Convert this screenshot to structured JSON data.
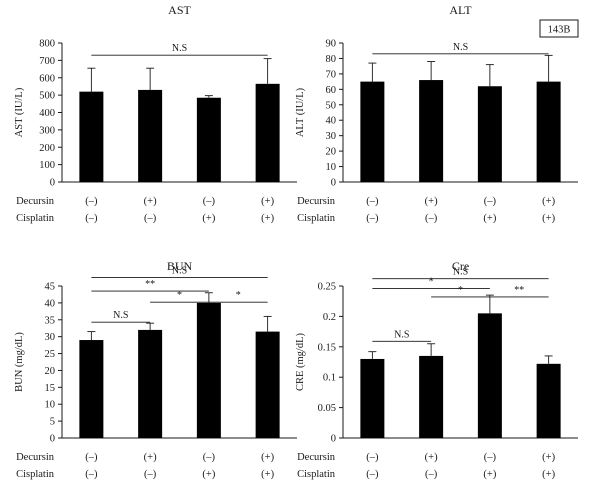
{
  "badge": "143B",
  "row_labels": [
    "Decursin",
    "Cisplatin"
  ],
  "chart_data": [
    {
      "type": "bar",
      "title": "AST",
      "ylabel": "AST (IU/L)",
      "ylim": [
        0,
        800
      ],
      "yticks": [
        0,
        100,
        200,
        300,
        400,
        500,
        600,
        700,
        800
      ],
      "decursin": [
        "(–)",
        "(+)",
        "(–)",
        "(+)"
      ],
      "cisplatin": [
        "(–)",
        "(–)",
        "(+)",
        "(+)"
      ],
      "values": [
        520,
        530,
        485,
        565
      ],
      "errors": [
        135,
        125,
        12,
        145
      ],
      "annotations": [
        {
          "from": 0,
          "to": 3,
          "y": 730,
          "label": "N.S"
        }
      ]
    },
    {
      "type": "bar",
      "title": "ALT",
      "ylabel": "ALT (IU/L)",
      "ylim": [
        0,
        90
      ],
      "yticks": [
        0,
        10,
        20,
        30,
        40,
        50,
        60,
        70,
        80,
        90
      ],
      "decursin": [
        "(–)",
        "(+)",
        "(–)",
        "(+)"
      ],
      "cisplatin": [
        "(–)",
        "(–)",
        "(+)",
        "(+)"
      ],
      "values": [
        65,
        66,
        62,
        65
      ],
      "errors": [
        12,
        12,
        14,
        17
      ],
      "annotations": [
        {
          "from": 0,
          "to": 3,
          "y": 83,
          "label": "N.S"
        }
      ]
    },
    {
      "type": "bar",
      "title": "BUN",
      "ylabel": "BUN (mg/dL)",
      "ylim": [
        0,
        45
      ],
      "yticks": [
        0,
        5,
        10,
        15,
        20,
        25,
        30,
        35,
        40,
        45
      ],
      "decursin": [
        "(–)",
        "(+)",
        "(–)",
        "(+)"
      ],
      "cisplatin": [
        "(–)",
        "(–)",
        "(+)",
        "(+)"
      ],
      "values": [
        29,
        32,
        40,
        31.5
      ],
      "errors": [
        2.5,
        2,
        3,
        4.5
      ],
      "annotations": [
        {
          "from": 0,
          "to": 3,
          "y": 47.5,
          "label": "N.S"
        },
        {
          "from": 0,
          "to": 2,
          "y": 43.5,
          "label": "**"
        },
        {
          "from": 1,
          "to": 2,
          "y": 40.2,
          "label": "*"
        },
        {
          "from": 2,
          "to": 3,
          "y": 40.2,
          "label": "*"
        },
        {
          "from": 0,
          "to": 1,
          "y": 34.3,
          "label": "N.S"
        }
      ]
    },
    {
      "type": "bar",
      "title": "Cre",
      "ylabel": "CRE (mg/dL)",
      "ylim": [
        0,
        0.25
      ],
      "yticks": [
        0,
        0.05,
        0.1,
        0.15,
        0.2,
        0.25
      ],
      "decursin": [
        "(–)",
        "(+)",
        "(–)",
        "(+)"
      ],
      "cisplatin": [
        "(–)",
        "(–)",
        "(+)",
        "(+)"
      ],
      "values": [
        0.13,
        0.135,
        0.205,
        0.122
      ],
      "errors": [
        0.012,
        0.02,
        0.03,
        0.013
      ],
      "annotations": [
        {
          "from": 0,
          "to": 3,
          "y": 0.262,
          "label": "N.S"
        },
        {
          "from": 0,
          "to": 2,
          "y": 0.246,
          "label": "*"
        },
        {
          "from": 1,
          "to": 2,
          "y": 0.232,
          "label": "*"
        },
        {
          "from": 2,
          "to": 3,
          "y": 0.232,
          "label": "**"
        },
        {
          "from": 0,
          "to": 1,
          "y": 0.159,
          "label": "N.S"
        }
      ]
    }
  ]
}
